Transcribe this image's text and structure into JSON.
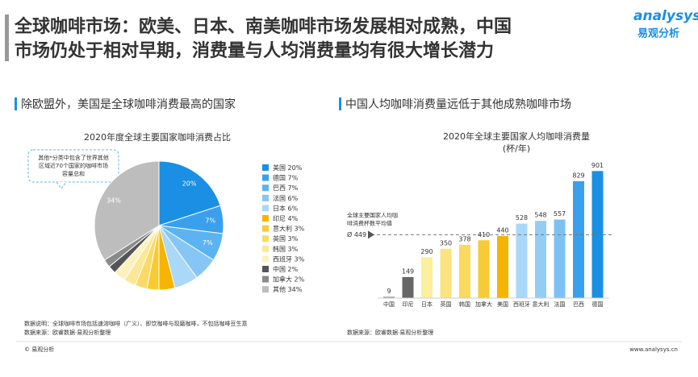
{
  "slide": {
    "title_lines": [
      "全球咖啡市场：欧美、日本、南美咖啡市场发展相对成熟，中国",
      "市场仍处于相对早期，消费量与人均消费量均有很大增长潜力"
    ],
    "logo": "analysys",
    "logo_cn": "易观分析",
    "footer_left": "© 易观分析",
    "footer_right": "www.analysys.cn"
  },
  "chart_data": [
    {
      "type": "pie",
      "heading": "除欧盟外，美国是全球咖啡消费最高的国家",
      "title": "2020年度全球主要国家咖啡消费占比",
      "annotation_lines": [
        "其他*分类中包含了世界其他",
        "区域近70个国家的咖啡市场",
        "容量总和"
      ],
      "categories": [
        "美国",
        "德国",
        "巴西",
        "法国",
        "日本",
        "印尼",
        "意大利",
        "英国",
        "韩国",
        "西班牙",
        "中国",
        "加拿大",
        "其他"
      ],
      "values": [
        20,
        7,
        7,
        6,
        6,
        4,
        3,
        3,
        3,
        3,
        2,
        2,
        34
      ],
      "value_labels": [
        "20%",
        "7%",
        "7%",
        "6%",
        "6%",
        "4%",
        "3%",
        "3%",
        "3%",
        "3%",
        "2%",
        "2%",
        "34%"
      ],
      "colors": [
        "#1a8fe3",
        "#3aa0ee",
        "#5cb3f2",
        "#86c6f5",
        "#a9d8f8",
        "#f5b400",
        "#f8cb30",
        "#fada66",
        "#fbe796",
        "#fdf1c0",
        "#555555",
        "#8a8a8a",
        "#bdbdbd"
      ],
      "notes": [
        "数据说明：全球咖啡市场包括速溶咖啡（广义）、即饮咖啡与现磨咖啡，不包括咖啡豆生意",
        "数据来源：欧睿数据·易观分析整理"
      ]
    },
    {
      "type": "bar",
      "heading": "中国人均咖啡消费量远低于其他成熟咖啡市场",
      "title": "2020年全球主要国家人均咖啡消费量",
      "subtitle": "(杯/年)",
      "categories": [
        "中国",
        "印尼",
        "日本",
        "英国",
        "韩国",
        "加拿大",
        "美国",
        "西班牙",
        "意大利",
        "法国",
        "巴西",
        "德国"
      ],
      "values": [
        9,
        149,
        290,
        350,
        378,
        410,
        440,
        528,
        548,
        557,
        829,
        901
      ],
      "colors": [
        "#8a8a8a",
        "#666666",
        "#fcef9e",
        "#fbe480",
        "#f9d95e",
        "#f7cb35",
        "#f5b400",
        "#a9d8f8",
        "#93cdf6",
        "#7dc1f4",
        "#3aa0ee",
        "#1a8fe3"
      ],
      "ylim": [
        0,
        1000
      ],
      "reference": {
        "value": 449,
        "label": "Ø 449",
        "note_lines": [
          "全球主要国家人均咖",
          "啡消费杯数平均值"
        ]
      },
      "notes": [
        "数据来源：欧睿数据·易观分析整理"
      ]
    }
  ]
}
